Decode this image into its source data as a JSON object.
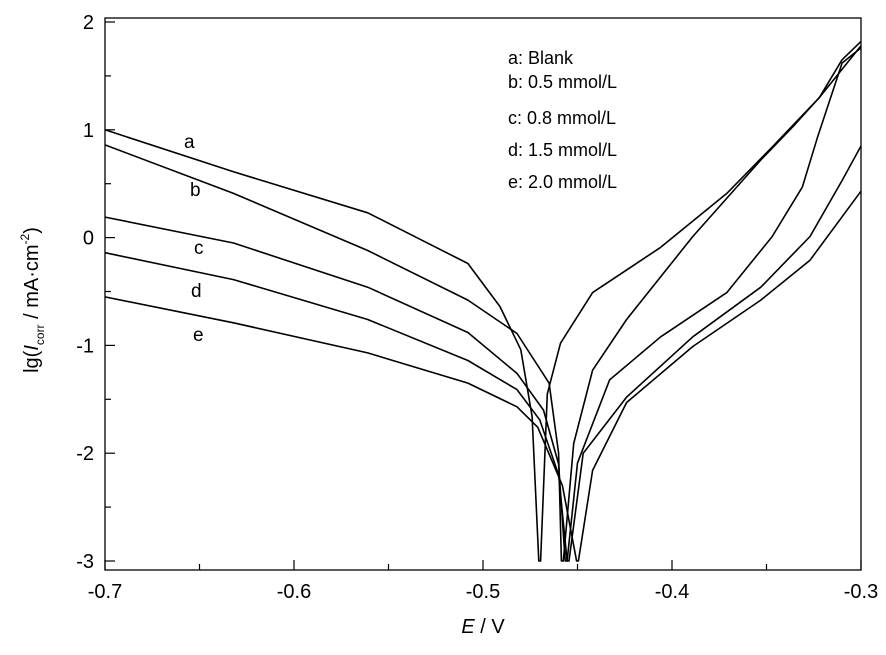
{
  "chart_data": {
    "type": "line",
    "title": "",
    "xlabel": {
      "var": "E",
      "unit": " / V"
    },
    "ylabel": {
      "prefix": "lg(",
      "var": "I",
      "sub": "corr",
      "mid": " / mA·cm",
      "sup": "-2",
      "suffix": ")"
    },
    "xlim": [
      -0.7,
      -0.3
    ],
    "ylim": [
      -3,
      2
    ],
    "xticks": [
      -0.7,
      -0.6,
      -0.5,
      -0.4,
      -0.3
    ],
    "xtick_labels": [
      "-0.7",
      "-0.6",
      "-0.5",
      "-0.4",
      "-0.3"
    ],
    "yticks": [
      2,
      1,
      0,
      -1,
      -2,
      -3
    ],
    "ytick_labels": [
      "2",
      "1",
      "0",
      "-1",
      "-2",
      "-3"
    ],
    "grid": false,
    "legend_position": "top-right",
    "legend": [
      "a: Blank",
      "b: 0.5 mmol/L",
      "c: 0.8 mmol/L",
      "d: 1.5 mmol/L",
      "e: 2.0 mmol/L"
    ],
    "curve_labels": [
      "a",
      "b",
      "c",
      "d",
      "e"
    ],
    "series": [
      {
        "name": "a",
        "color": "#000000",
        "x": [
          -0.7,
          -0.632,
          -0.561,
          -0.508,
          -0.491,
          -0.48,
          -0.474,
          -0.4705,
          -0.4695,
          -0.466,
          -0.459,
          -0.442,
          -0.406,
          -0.371,
          -0.347,
          -0.322,
          -0.31,
          -0.3
        ],
        "y": [
          1.0,
          0.61,
          0.23,
          -0.24,
          -0.64,
          -1.04,
          -1.66,
          -3.0,
          -3.0,
          -1.45,
          -0.98,
          -0.51,
          -0.09,
          0.41,
          0.84,
          1.3,
          1.65,
          1.82
        ]
      },
      {
        "name": "b",
        "color": "#000000",
        "x": [
          -0.7,
          -0.632,
          -0.561,
          -0.508,
          -0.482,
          -0.465,
          -0.46,
          -0.4585,
          -0.4575,
          -0.452,
          -0.442,
          -0.424,
          -0.389,
          -0.353,
          -0.336,
          -0.322,
          -0.3
        ],
        "y": [
          0.86,
          0.41,
          -0.12,
          -0.58,
          -0.89,
          -1.35,
          -2.0,
          -3.0,
          -3.0,
          -1.91,
          -1.23,
          -0.76,
          0.01,
          0.72,
          1.03,
          1.3,
          1.78
        ]
      },
      {
        "name": "c",
        "color": "#000000",
        "x": [
          -0.7,
          -0.632,
          -0.561,
          -0.508,
          -0.482,
          -0.468,
          -0.46,
          -0.4565,
          -0.4555,
          -0.45,
          -0.433,
          -0.406,
          -0.371,
          -0.347,
          -0.331,
          -0.323,
          -0.31,
          -0.3
        ],
        "y": [
          0.19,
          -0.05,
          -0.46,
          -0.88,
          -1.26,
          -1.6,
          -2.1,
          -3.0,
          -3.0,
          -2.09,
          -1.32,
          -0.92,
          -0.51,
          0.01,
          0.47,
          0.93,
          1.62,
          1.76
        ]
      },
      {
        "name": "d",
        "color": "#000000",
        "x": [
          -0.7,
          -0.632,
          -0.561,
          -0.508,
          -0.482,
          -0.47,
          -0.46,
          -0.4555,
          -0.4545,
          -0.447,
          -0.424,
          -0.389,
          -0.353,
          -0.327,
          -0.31,
          -0.3
        ],
        "y": [
          -0.14,
          -0.39,
          -0.76,
          -1.14,
          -1.41,
          -1.69,
          -2.2,
          -3.0,
          -3.0,
          -2.0,
          -1.48,
          -0.92,
          -0.46,
          0.01,
          0.53,
          0.85
        ]
      },
      {
        "name": "e",
        "color": "#000000",
        "x": [
          -0.7,
          -0.632,
          -0.561,
          -0.508,
          -0.482,
          -0.471,
          -0.458,
          -0.4505,
          -0.4495,
          -0.442,
          -0.424,
          -0.389,
          -0.353,
          -0.327,
          -0.3
        ],
        "y": [
          -0.55,
          -0.79,
          -1.07,
          -1.35,
          -1.57,
          -1.76,
          -2.3,
          -3.0,
          -3.0,
          -2.16,
          -1.53,
          -1.01,
          -0.58,
          -0.21,
          0.43
        ]
      }
    ]
  }
}
